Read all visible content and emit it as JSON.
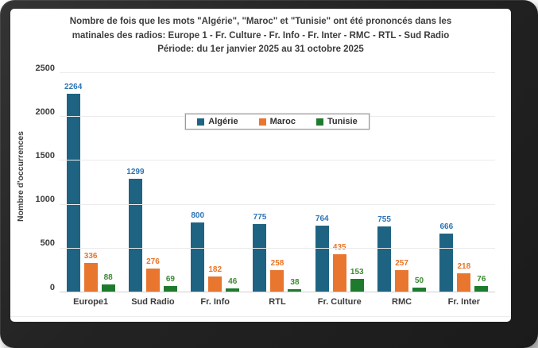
{
  "frame": {
    "bg_dark": "#232323",
    "card_bg": "#ffffff"
  },
  "title": {
    "line1": "Nombre de fois que les mots \"Algérie\", \"Maroc\" et \"Tunisie\" ont été prononcés dans les",
    "line2": "matinales des radios: Europe 1 - Fr. Culture - Fr. Info - Fr. Inter - RMC - RTL - Sud Radio",
    "line3": "Période: du 1er janvier 2025 au 31 octobre 2025"
  },
  "chart_data": {
    "type": "bar",
    "title": "Nombre de fois que les mots \"Algérie\", \"Maroc\" et \"Tunisie\" ont été prononcés dans les matinales des radios: Europe 1 - Fr. Culture - Fr. Info - Fr. Inter - RMC - RTL - Sud Radio. Période: du 1er janvier 2025 au 31 octobre 2025",
    "categories": [
      "Europe1",
      "Sud Radio",
      "Fr. Info",
      "RTL",
      "Fr. Culture",
      "RMC",
      "Fr. Inter"
    ],
    "series": [
      {
        "name": "Algérie",
        "color": "#1e6482",
        "label_color": "#2d75b5",
        "values": [
          2264,
          1299,
          800,
          775,
          764,
          755,
          666
        ]
      },
      {
        "name": "Maroc",
        "color": "#e8762f",
        "label_color": "#e87427",
        "values": [
          336,
          276,
          182,
          258,
          435,
          257,
          218
        ]
      },
      {
        "name": "Tunisie",
        "color": "#1e7b2e",
        "label_color": "#3e8934",
        "values": [
          88,
          69,
          46,
          38,
          153,
          50,
          76
        ]
      }
    ],
    "xlabel": "",
    "ylabel": "Nombre d'occurrences",
    "ylim": [
      0,
      2500
    ],
    "yticks": [
      0,
      500,
      1000,
      1500,
      2000,
      2500
    ],
    "grid": true,
    "legend_position": "upper-center"
  }
}
